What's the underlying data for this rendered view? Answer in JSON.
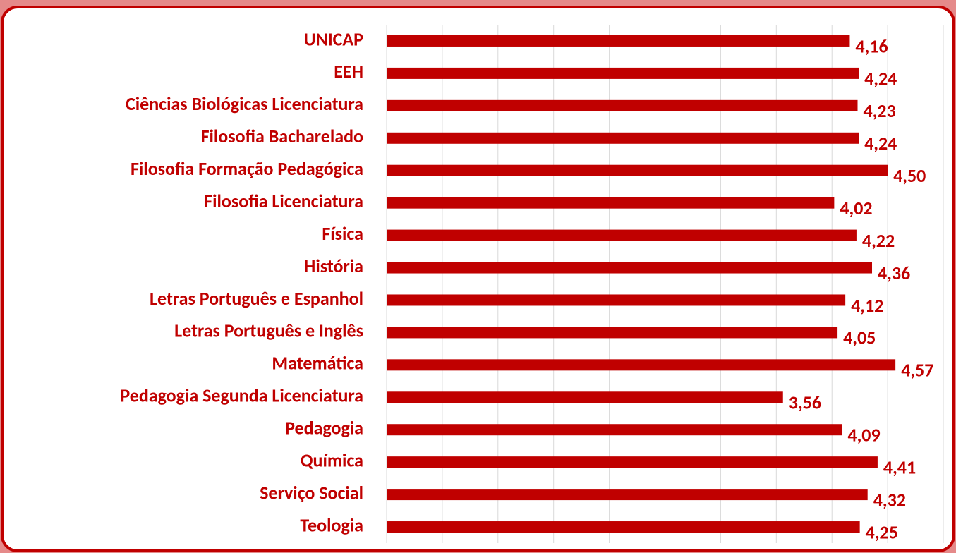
{
  "chart_data": {
    "type": "bar",
    "orientation": "horizontal",
    "categories": [
      "UNICAP",
      "EEH",
      "Ciências Biológicas Licenciatura",
      "Filosofia Bacharelado",
      "Filosofia Formação Pedagógica",
      "Filosofia Licenciatura",
      "Física",
      "História",
      "Letras Português e Espanhol",
      "Letras Português e Inglês",
      "Matemática",
      "Pedagogia Segunda Licenciatura",
      "Pedagogia",
      "Química",
      "Serviço Social",
      "Teologia"
    ],
    "values": [
      4.16,
      4.24,
      4.23,
      4.24,
      4.5,
      4.02,
      4.22,
      4.36,
      4.12,
      4.05,
      4.57,
      3.56,
      4.09,
      4.41,
      4.32,
      4.25
    ],
    "value_labels": [
      "4,16",
      "4,24",
      "4,23",
      "4,24",
      "4,50",
      "4,02",
      "4,22",
      "4,36",
      "4,12",
      "4,05",
      "4,57",
      "3,56",
      "4,09",
      "4,41",
      "4,32",
      "4,25"
    ],
    "color": "#c00000",
    "xlim": [
      0,
      5
    ],
    "xticks": [
      0,
      0.5,
      1,
      1.5,
      2,
      2.5,
      3,
      3.5,
      4,
      4.5,
      5
    ],
    "grid": true
  }
}
